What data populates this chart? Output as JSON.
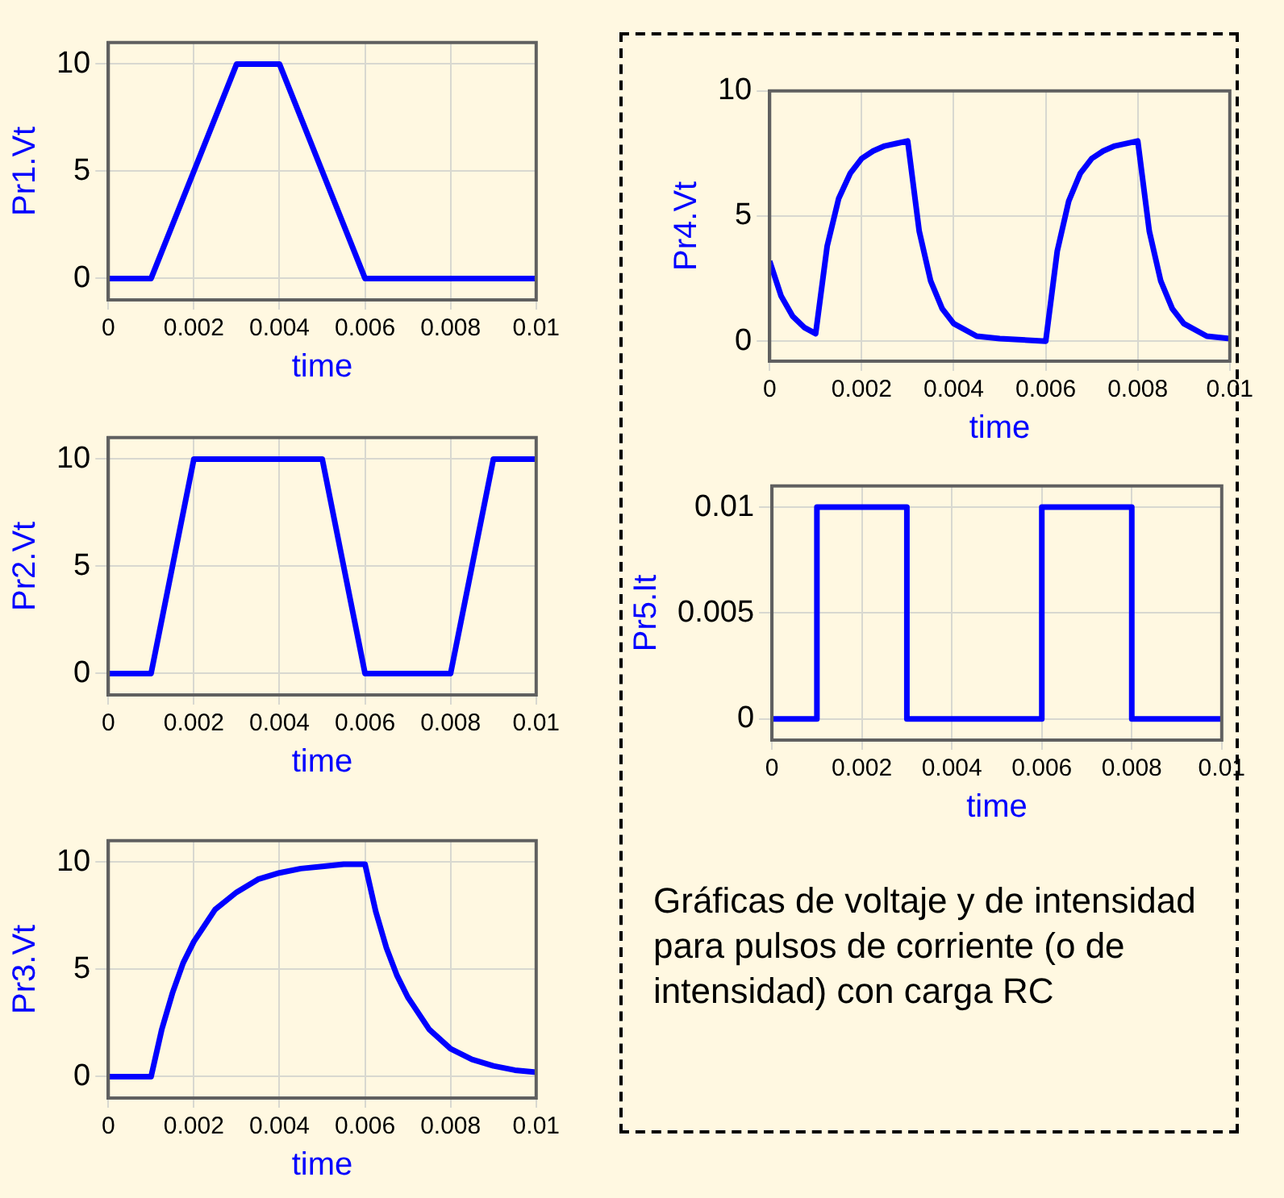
{
  "chart_data": [
    {
      "type": "line",
      "ylabel": "Pr1.Vt",
      "xlabel": "time",
      "color": "#0000ff",
      "marker": "none",
      "line_style": "solid",
      "grid": true,
      "xlim": [
        0,
        0.01
      ],
      "ylim": [
        -1,
        11
      ],
      "xticks": [
        0,
        0.002,
        0.004,
        0.006,
        0.008,
        0.01
      ],
      "yticks": [
        0,
        5,
        10
      ],
      "x": [
        0,
        0.001,
        0.003,
        0.004,
        0.006,
        0.01
      ],
      "values": [
        0,
        0,
        10,
        10,
        0,
        0
      ]
    },
    {
      "type": "line",
      "ylabel": "Pr2.Vt",
      "xlabel": "time",
      "color": "#0000ff",
      "marker": "none",
      "line_style": "solid",
      "grid": true,
      "xlim": [
        0,
        0.01
      ],
      "ylim": [
        -1,
        11
      ],
      "xticks": [
        0,
        0.002,
        0.004,
        0.006,
        0.008,
        0.01
      ],
      "yticks": [
        0,
        5,
        10
      ],
      "x": [
        0,
        0.001,
        0.002,
        0.005,
        0.006,
        0.008,
        0.009,
        0.01
      ],
      "values": [
        0,
        0,
        10,
        10,
        0,
        0,
        10,
        10
      ]
    },
    {
      "type": "line",
      "ylabel": "Pr3.Vt",
      "xlabel": "time",
      "color": "#0000ff",
      "marker": "none",
      "line_style": "solid",
      "grid": true,
      "xlim": [
        0,
        0.01
      ],
      "ylim": [
        -1,
        11
      ],
      "xticks": [
        0,
        0.002,
        0.004,
        0.006,
        0.008,
        0.01
      ],
      "yticks": [
        0,
        5,
        10
      ],
      "x": [
        0,
        0.001,
        0.00125,
        0.0015,
        0.00175,
        0.002,
        0.0025,
        0.003,
        0.0035,
        0.004,
        0.0045,
        0.005,
        0.0055,
        0.006,
        0.00625,
        0.0065,
        0.00675,
        0.007,
        0.0075,
        0.008,
        0.0085,
        0.009,
        0.0095,
        0.01
      ],
      "values": [
        0,
        0,
        2.2,
        3.9,
        5.3,
        6.3,
        7.8,
        8.6,
        9.2,
        9.5,
        9.7,
        9.8,
        9.9,
        9.9,
        7.7,
        6.0,
        4.7,
        3.7,
        2.2,
        1.3,
        0.8,
        0.5,
        0.3,
        0.2
      ]
    },
    {
      "type": "line",
      "ylabel": "Pr4.Vt",
      "xlabel": "time",
      "color": "#0000ff",
      "marker": "none",
      "line_style": "solid",
      "grid": true,
      "xlim": [
        0,
        0.01
      ],
      "ylim": [
        -0.8,
        10
      ],
      "xticks": [
        0,
        0.002,
        0.004,
        0.006,
        0.008,
        0.01
      ],
      "yticks": [
        0,
        5,
        10
      ],
      "x": [
        0,
        0.00025,
        0.0005,
        0.00075,
        0.001,
        0.00125,
        0.0015,
        0.00175,
        0.002,
        0.00225,
        0.0025,
        0.00275,
        0.003,
        0.00325,
        0.0035,
        0.00375,
        0.004,
        0.0045,
        0.005,
        0.006,
        0.00625,
        0.0065,
        0.00675,
        0.007,
        0.00725,
        0.0075,
        0.008,
        0.00825,
        0.0085,
        0.00875,
        0.009,
        0.0095,
        0.01
      ],
      "values": [
        3.2,
        1.8,
        1.0,
        0.55,
        0.3,
        3.8,
        5.7,
        6.7,
        7.3,
        7.6,
        7.8,
        7.9,
        8.0,
        4.4,
        2.4,
        1.3,
        0.7,
        0.2,
        0.1,
        0,
        3.6,
        5.6,
        6.7,
        7.3,
        7.6,
        7.8,
        8.0,
        4.4,
        2.4,
        1.3,
        0.7,
        0.2,
        0.1
      ]
    },
    {
      "type": "line",
      "ylabel": "Pr5.It",
      "xlabel": "time",
      "color": "#0000ff",
      "marker": "none",
      "line_style": "solid",
      "grid": true,
      "xlim": [
        0,
        0.01
      ],
      "ylim": [
        -0.001,
        0.011
      ],
      "xticks": [
        0,
        0.002,
        0.004,
        0.006,
        0.008,
        0.01
      ],
      "yticks": [
        0,
        0.005,
        0.01
      ],
      "x": [
        0,
        0.001,
        0.001,
        0.003,
        0.003,
        0.006,
        0.006,
        0.008,
        0.008,
        0.01
      ],
      "values": [
        0,
        0,
        0.01,
        0.01,
        0,
        0,
        0.01,
        0.01,
        0,
        0
      ],
      "annotations": [
        "Gráficas de voltaje y de intensidad para pulsos de corriente (o de intensidad) con carga RC"
      ]
    }
  ]
}
